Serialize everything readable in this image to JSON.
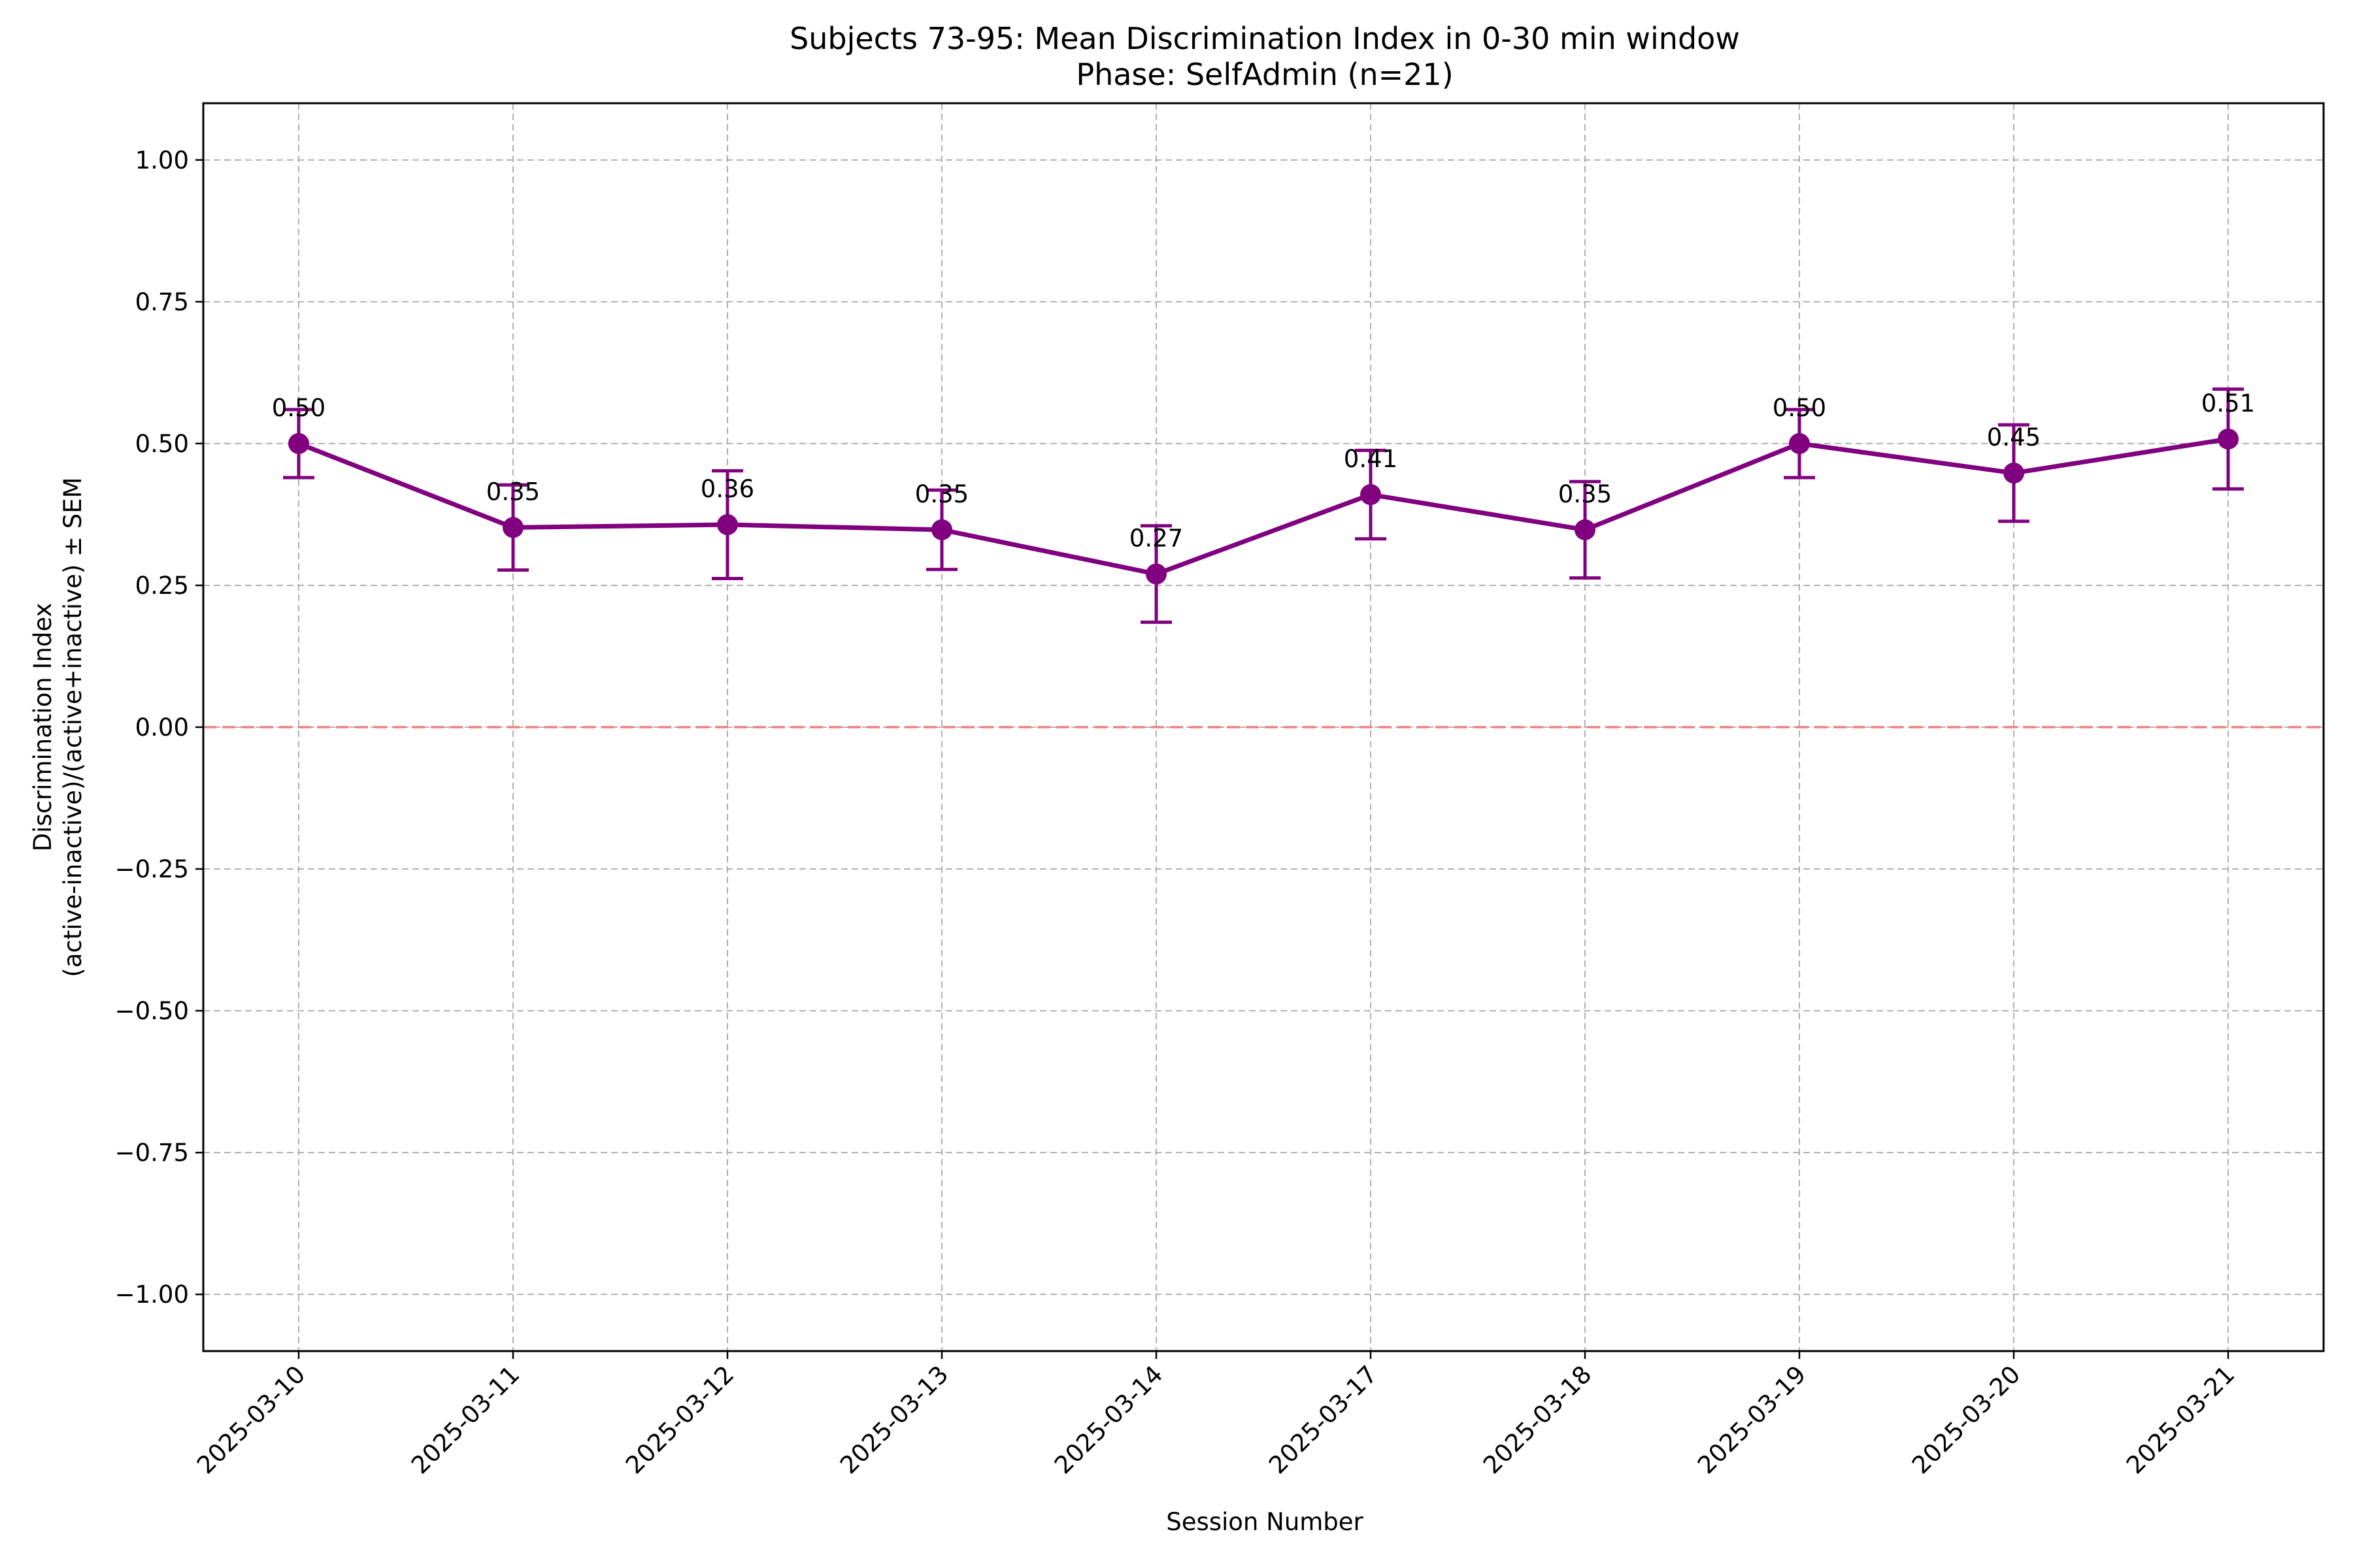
{
  "chart_data": {
    "type": "line",
    "title": "Subjects 73-95: Mean Discrimination Index in 0-30 min window",
    "subtitle": "Phase: SelfAdmin (n=21)",
    "xlabel": "Session Number",
    "ylabel": "Discrimination Index",
    "ylabel_line2": "(active-inactive)/(active+inactive) ± SEM",
    "ylim": [
      -1.1,
      1.1
    ],
    "yticks": [
      -1.0,
      -0.75,
      -0.5,
      -0.25,
      0.0,
      0.25,
      0.5,
      0.75,
      1.0
    ],
    "ytick_labels": [
      "−1.00",
      "−0.75",
      "−0.50",
      "−0.25",
      "0.00",
      "0.25",
      "0.50",
      "0.75",
      "1.00"
    ],
    "grid": true,
    "reference_line": {
      "y": 0.0,
      "color": "#f08080",
      "style": "dashed"
    },
    "series_color": "#800080",
    "categories": [
      "2025-03-10",
      "2025-03-11",
      "2025-03-12",
      "2025-03-13",
      "2025-03-14",
      "2025-03-17",
      "2025-03-18",
      "2025-03-19",
      "2025-03-20",
      "2025-03-21"
    ],
    "series": [
      {
        "values": [
          0.5,
          0.352,
          0.357,
          0.348,
          0.27,
          0.41,
          0.348,
          0.5,
          0.448,
          0.508
        ],
        "error": [
          0.06,
          0.075,
          0.095,
          0.07,
          0.085,
          0.078,
          0.085,
          0.06,
          0.085,
          0.088
        ],
        "labels": [
          "0.50",
          "0.35",
          "0.36",
          "0.35",
          "0.27",
          "0.41",
          "0.35",
          "0.50",
          "0.45",
          "0.51"
        ]
      }
    ]
  }
}
